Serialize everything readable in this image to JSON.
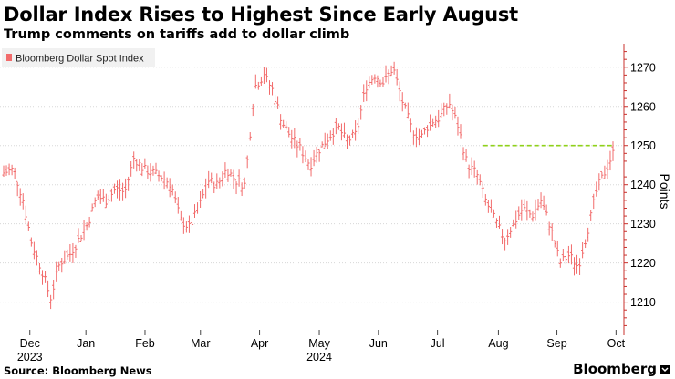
{
  "header": {
    "title": "Dollar Index Rises to Highest Since Early August",
    "subtitle": "Trump comments on tariffs add to dollar climb"
  },
  "footer": {
    "source": "Source: Bloomberg News",
    "brand": "Bloomberg"
  },
  "colors": {
    "series": "#f26b6b",
    "reference_line": "#8fd11a",
    "axis": "#c9302c",
    "tick_text": "#000000"
  },
  "chart_data": {
    "type": "line",
    "style": "ohlc-bars",
    "legend": {
      "label": "Bloomberg Dollar Spot Index",
      "placement": "top-left"
    },
    "ylabel": "Points",
    "ylim": [
      1202,
      1276
    ],
    "yticks": [
      1210,
      1220,
      1230,
      1240,
      1250,
      1260,
      1270
    ],
    "y_axis_position": "right",
    "xlim": [
      0,
      100
    ],
    "xticks": [
      {
        "x": 4.3,
        "label": "Dec",
        "sublabel": "2023"
      },
      {
        "x": 13.5,
        "label": "Jan",
        "sublabel": ""
      },
      {
        "x": 23.2,
        "label": "Feb",
        "sublabel": ""
      },
      {
        "x": 32.3,
        "label": "Mar",
        "sublabel": ""
      },
      {
        "x": 42.0,
        "label": "Apr",
        "sublabel": ""
      },
      {
        "x": 51.8,
        "label": "May",
        "sublabel": "2024"
      },
      {
        "x": 61.5,
        "label": "Jun",
        "sublabel": ""
      },
      {
        "x": 71.2,
        "label": "Jul",
        "sublabel": ""
      },
      {
        "x": 81.2,
        "label": "Aug",
        "sublabel": ""
      },
      {
        "x": 90.8,
        "label": "Sep",
        "sublabel": ""
      },
      {
        "x": 100.5,
        "label": "Oct",
        "sublabel": ""
      }
    ],
    "reference_line": {
      "y": 1250,
      "x_start": 78.7,
      "x_end": 100,
      "style": "dashed"
    },
    "series": [
      {
        "name": "Bloomberg Dollar Spot Index",
        "x": [
          0,
          1.6,
          3.2,
          4.6,
          6.3,
          7.7,
          9.2,
          10.8,
          12.3,
          13.8,
          15.3,
          16.9,
          18.4,
          19.9,
          21.4,
          22.9,
          24.5,
          26.0,
          27.5,
          29.0,
          30.5,
          32.0,
          33.6,
          35.1,
          36.6,
          38.1,
          39.6,
          41.2,
          42.7,
          44.2,
          45.7,
          47.2,
          48.8,
          50.3,
          51.8,
          53.3,
          54.8,
          56.3,
          57.9,
          59.4,
          60.9,
          62.4,
          63.9,
          65.5,
          67.0,
          68.5,
          70.0,
          71.5,
          73.1,
          74.6,
          76.1,
          77.6,
          79.1,
          80.6,
          82.2,
          83.7,
          85.2,
          86.7,
          88.2,
          89.8,
          91.3,
          92.8,
          94.3,
          95.8,
          97.4,
          98.9,
          100
        ],
        "values": [
          1243,
          1244,
          1236,
          1225,
          1218,
          1211,
          1220,
          1222,
          1226,
          1230,
          1237,
          1236,
          1239,
          1238,
          1247,
          1244,
          1243,
          1242,
          1240,
          1231,
          1229,
          1234,
          1241,
          1240,
          1244,
          1241,
          1240,
          1265,
          1268,
          1264,
          1256,
          1252,
          1249,
          1245,
          1249,
          1252,
          1255,
          1251,
          1253,
          1265,
          1268,
          1266,
          1270,
          1261,
          1254,
          1252,
          1256,
          1257,
          1261,
          1255,
          1245,
          1243,
          1236,
          1231,
          1226,
          1230,
          1234,
          1232,
          1236,
          1229,
          1220,
          1222,
          1219,
          1228,
          1239,
          1244,
          1248
        ]
      }
    ]
  }
}
